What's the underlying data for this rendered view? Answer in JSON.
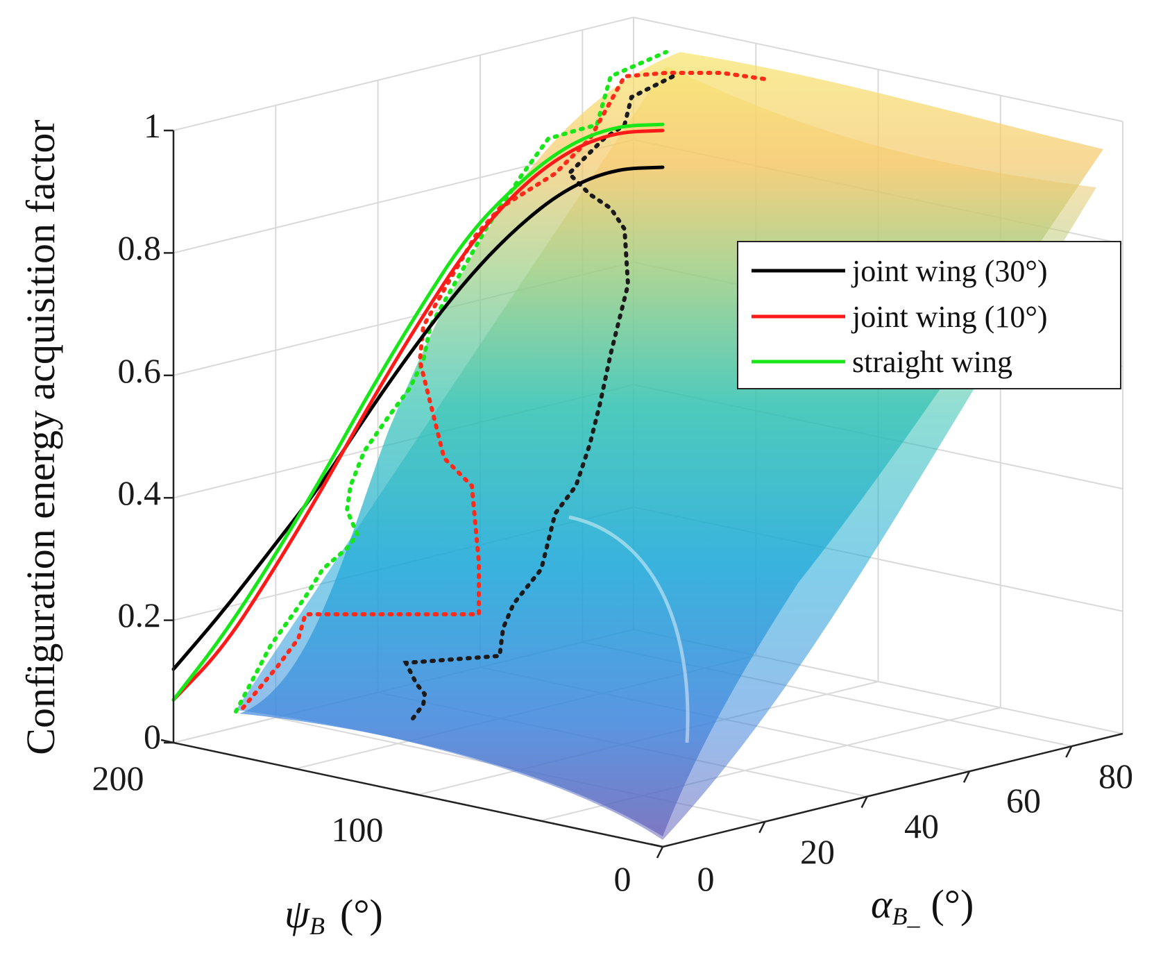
{
  "chart_data": {
    "type": "surface3d",
    "ylabel": "Configuration energy acquisition factor",
    "psi_axis": {
      "label_symbol": "ψ",
      "label_sub": "B",
      "label_unit": "(°)",
      "ticks": [
        "200",
        "100",
        "0"
      ],
      "range": [
        0,
        200
      ]
    },
    "alpha_axis": {
      "label_symbol": "α",
      "label_sub": "B_",
      "label_unit": "(°)",
      "ticks": [
        "0",
        "20",
        "40",
        "60",
        "80"
      ],
      "range": [
        0,
        90
      ]
    },
    "z_axis": {
      "ticks": [
        "0",
        "0.2",
        "0.4",
        "0.6",
        "0.8",
        "1"
      ],
      "range": [
        0,
        1
      ]
    },
    "legend": {
      "position": "right",
      "entries": [
        {
          "label": "joint wing (30°)",
          "color": "#000000"
        },
        {
          "label": "joint wing (10°)",
          "color": "#ff1a1a"
        },
        {
          "label": "straight wing",
          "color": "#19e619"
        }
      ]
    },
    "series": [
      {
        "name": "joint wing (30°)",
        "projection_alpha0": {
          "psi": [
            200,
            180,
            160,
            140,
            120,
            100,
            80,
            60,
            40,
            20,
            0
          ],
          "z": [
            0.12,
            0.23,
            0.35,
            0.47,
            0.61,
            0.74,
            0.86,
            0.96,
            1.04,
            1.09,
            1.11
          ]
        }
      },
      {
        "name": "joint wing (10°)",
        "projection_alpha0": {
          "psi": [
            200,
            180,
            160,
            140,
            120,
            100,
            80,
            60,
            40,
            20,
            0
          ],
          "z": [
            0.07,
            0.17,
            0.31,
            0.46,
            0.62,
            0.77,
            0.91,
            1.02,
            1.1,
            1.15,
            1.17
          ]
        }
      },
      {
        "name": "straight wing",
        "projection_alpha0": {
          "psi": [
            200,
            180,
            160,
            140,
            120,
            100,
            80,
            60,
            40,
            20,
            0
          ],
          "z": [
            0.07,
            0.19,
            0.33,
            0.48,
            0.64,
            0.79,
            0.93,
            1.03,
            1.11,
            1.16,
            1.18
          ]
        }
      }
    ]
  }
}
